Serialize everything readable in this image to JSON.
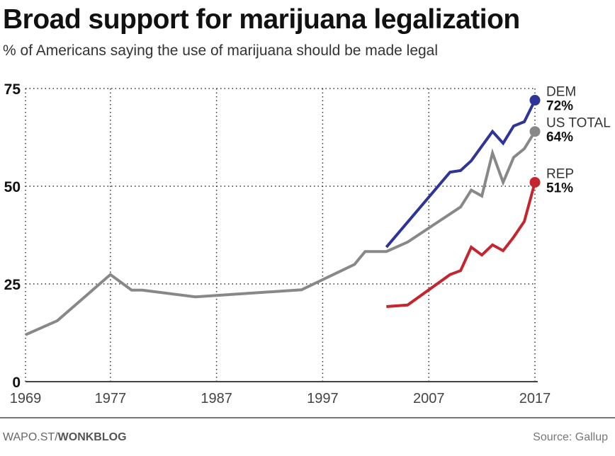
{
  "title": "Broad support for marijuana legalization",
  "subtitle": "% of Americans saying the use of marijuana should be made legal",
  "footer": {
    "credit_prefix": "WAPO.ST/",
    "credit_bold": "WONKBLOG",
    "source": "Source: Gallup"
  },
  "chart_data": {
    "type": "line",
    "title": "Broad support for marijuana legalization",
    "subtitle": "% of Americans saying the use of marijuana should be made legal",
    "xlim": [
      1969,
      2017
    ],
    "ylim": [
      0,
      75
    ],
    "x_ticks": [
      1969,
      1977,
      1987,
      1997,
      2007,
      2017
    ],
    "y_ticks": [
      0,
      25,
      50,
      75
    ],
    "grid": true,
    "series": [
      {
        "name": "US TOTAL",
        "end_label": "64%",
        "color": "#888888",
        "x": [
          1969,
          1972,
          1977,
          1979,
          1980,
          1985,
          1995,
          2000,
          2001,
          2003,
          2005,
          2010,
          2011,
          2012,
          2013,
          2014,
          2015,
          2016,
          2017
        ],
        "values": [
          12,
          15.6,
          27.4,
          23.4,
          23.4,
          21.7,
          23.5,
          30,
          33.3,
          33.3,
          35.7,
          44.7,
          49,
          47.5,
          58.5,
          51,
          57.4,
          59.6,
          64
        ]
      },
      {
        "name": "DEM",
        "end_label": "72%",
        "color": "#2e3597",
        "x": [
          2003,
          2009,
          2010,
          2011,
          2013,
          2014,
          2015,
          2016,
          2017
        ],
        "values": [
          34.4,
          53.6,
          54,
          56.5,
          64,
          61,
          65.4,
          66.5,
          72
        ]
      },
      {
        "name": "REP",
        "end_label": "51%",
        "color": "#c4262e",
        "x": [
          2003,
          2005,
          2009,
          2010,
          2011,
          2012,
          2013,
          2014,
          2015,
          2016,
          2017
        ],
        "values": [
          19.2,
          19.6,
          27.4,
          28.4,
          34.4,
          32.4,
          35,
          33.5,
          37,
          41,
          51
        ]
      }
    ]
  }
}
